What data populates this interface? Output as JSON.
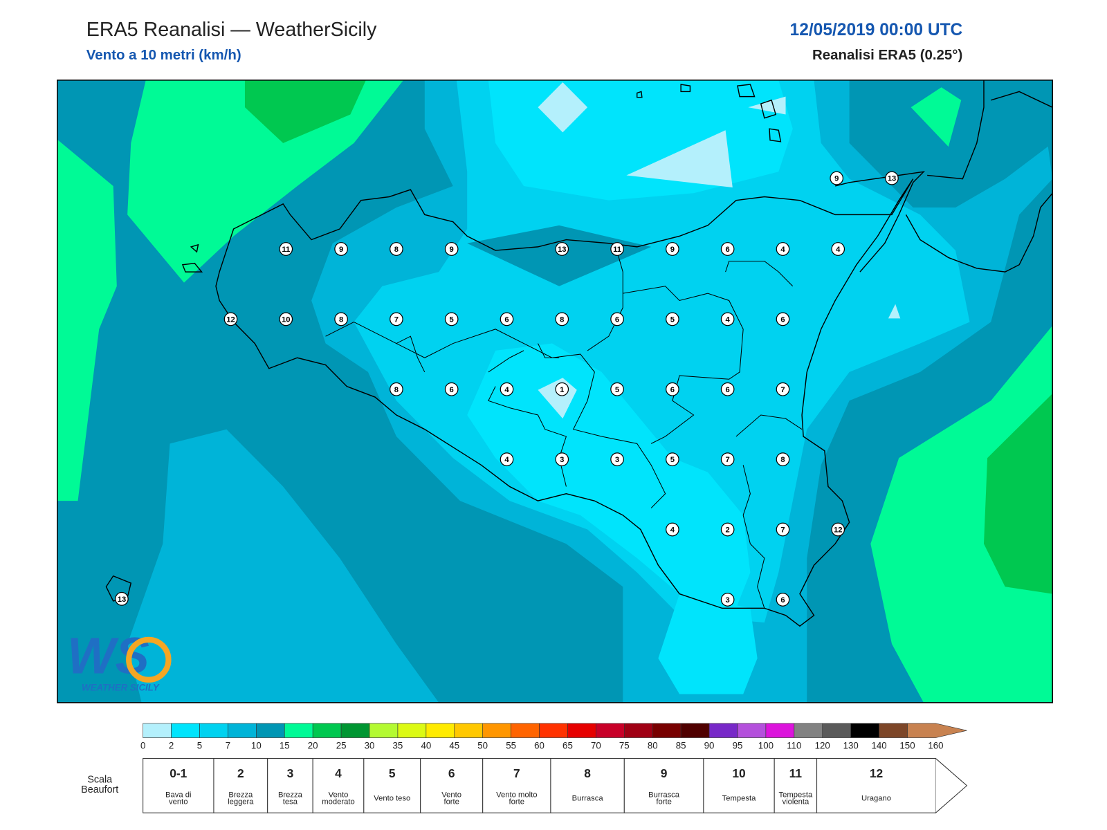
{
  "header": {
    "title": "ERA5 Reanalisi — WeatherSicily",
    "subtitle": "Vento a 10 metri (km/h)",
    "date": "12/05/2019 00:00 UTC",
    "source": "Reanalisi ERA5 (0.25°)"
  },
  "stations": [
    11,
    9,
    8,
    9,
    13,
    11,
    9,
    6,
    4,
    4,
    12,
    10,
    8,
    7,
    5,
    6,
    8,
    6,
    5,
    4,
    6,
    8,
    6,
    4,
    1,
    5,
    6,
    6,
    7,
    4,
    3,
    3,
    5,
    7,
    8,
    4,
    2,
    7,
    12,
    3,
    6,
    9,
    13,
    13
  ],
  "logo": {
    "letters": "WS",
    "name": "WEATHER SICILY"
  },
  "colorbar": {
    "ticks": [
      0,
      2,
      5,
      7,
      10,
      15,
      20,
      25,
      30,
      35,
      40,
      45,
      50,
      55,
      60,
      65,
      70,
      75,
      80,
      85,
      90,
      95,
      100,
      110,
      120,
      130,
      140,
      150,
      160
    ],
    "colors": [
      "#b4f0fc",
      "#00e4fc",
      "#00d2f0",
      "#00b4d8",
      "#0096b4",
      "#00fa96",
      "#00c850",
      "#009632",
      "#b4fa32",
      "#dcfa14",
      "#ffeb00",
      "#ffc800",
      "#ff9600",
      "#ff6400",
      "#ff3200",
      "#e60000",
      "#c80028",
      "#a00014",
      "#780000",
      "#500000",
      "#7828c8",
      "#b450dc",
      "#dc14dc",
      "#828282",
      "#5a5a5a",
      "#000000",
      "#7d4628",
      "#c88250"
    ]
  },
  "beaufort": {
    "label": [
      "Scala",
      "Beaufort"
    ],
    "levels": [
      {
        "force": "0-1",
        "name": [
          "Bava di",
          "vento"
        ]
      },
      {
        "force": "2",
        "name": [
          "Brezza",
          "leggera"
        ]
      },
      {
        "force": "3",
        "name": [
          "Brezza",
          "tesa"
        ]
      },
      {
        "force": "4",
        "name": [
          "Vento",
          "moderato"
        ]
      },
      {
        "force": "5",
        "name": [
          "Vento teso"
        ]
      },
      {
        "force": "6",
        "name": [
          "Vento",
          "forte"
        ]
      },
      {
        "force": "7",
        "name": [
          "Vento molto",
          "forte"
        ]
      },
      {
        "force": "8",
        "name": [
          "Burrasca"
        ]
      },
      {
        "force": "9",
        "name": [
          "Burrasca",
          "forte"
        ]
      },
      {
        "force": "10",
        "name": [
          "Tempesta"
        ]
      },
      {
        "force": "11",
        "name": [
          "Tempesta",
          "violenta"
        ]
      },
      {
        "force": "12",
        "name": [
          "Uragano"
        ]
      }
    ]
  }
}
